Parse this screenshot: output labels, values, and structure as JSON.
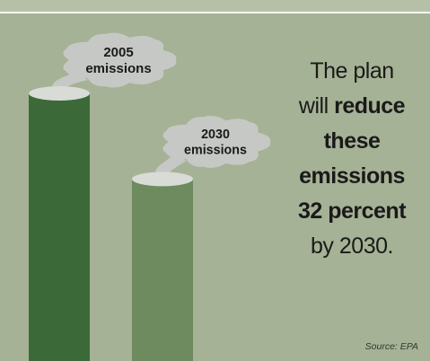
{
  "chart_data": {
    "type": "bar",
    "categories": [
      "2005 emissions",
      "2030 emissions"
    ],
    "values": [
      100,
      68
    ],
    "reduction_percent": 32,
    "title": "",
    "xlabel": "",
    "ylabel": "",
    "ylim": [
      0,
      100
    ],
    "grid": false,
    "legend": "none",
    "colors": {
      "background": "#a5b295",
      "top_band": "#b6c0a6",
      "bar_2005": "#3b6a38",
      "bar_2030": "#6e8a5f",
      "bar_cap": "#d9dbd7",
      "smoke": "#c6c8c5"
    }
  },
  "caption": {
    "line1": "The plan",
    "line2_prefix": "will ",
    "line2_bold": "reduce",
    "line3_bold": "these",
    "line4_bold": "emissions",
    "line5_bold": "32 percent",
    "line6": "by 2030."
  },
  "source": "Source: EPA"
}
